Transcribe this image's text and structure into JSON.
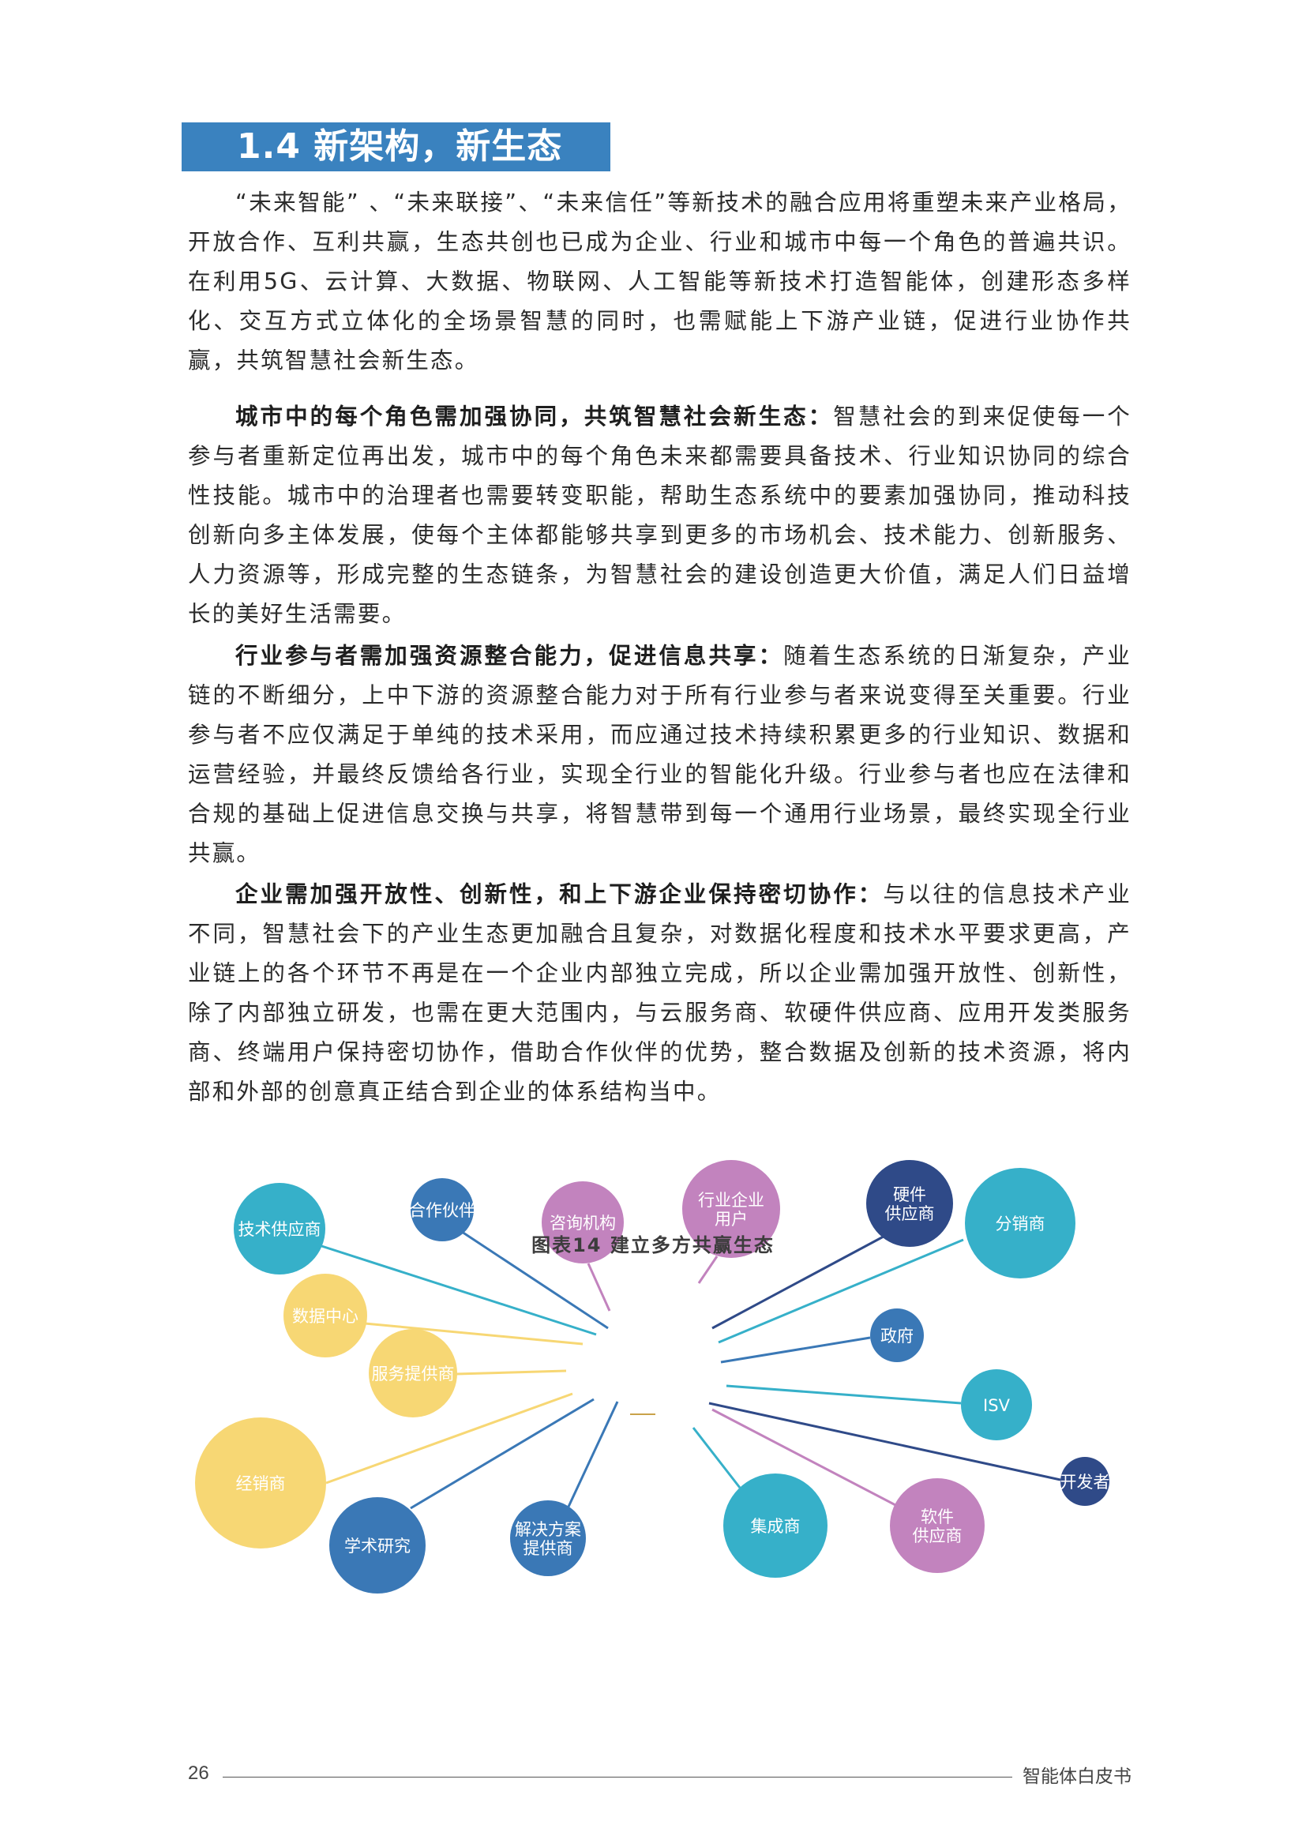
{
  "section": {
    "title": "1.4 新架构，新生态"
  },
  "paragraphs": {
    "p1": {
      "text": "“未来智能”  、“未来联接”、“未来信任”等新技术的融合应用将重塑未来产业格局，开放合作、互利共赢，生态共创也已成为企业、行业和城市中每一个角色的普遍共识。在利用5G、云计算、大数据、物联网、人工智能等新技术打造智能体，创建形态多样化、交互方式立体化的全场景智慧的同时，也需赋能上下游产业链，促进行业协作共赢，共筑智慧社会新生态。"
    },
    "p2": {
      "lead": "城市中的每个角色需加强协同，共筑智慧社会新生态：",
      "text": "智慧社会的到来促使每一个参与者重新定位再出发，城市中的每个角色未来都需要具备技术、行业知识协同的综合性技能。城市中的治理者也需要转变职能，帮助生态系统中的要素加强协同，推动科技创新向多主体发展，使每个主体都能够共享到更多的市场机会、技术能力、创新服务、人力资源等，形成完整的生态链条，为智慧社会的建设创造更大价值，满足人们日益增长的美好生活需要。"
    },
    "p3": {
      "lead": "行业参与者需加强资源整合能力，促进信息共享：",
      "text": "随着生态系统的日渐复杂，产业链的不断细分，上中下游的资源整合能力对于所有行业参与者来说变得至关重要。行业参与者不应仅满足于单纯的技术采用，而应通过技术持续积累更多的行业知识、数据和运营经验，并最终反馈给各行业，实现全行业的智能化升级。行业参与者也应在法律和合规的基础上促进信息交换与共享，将智慧带到每一个通用行业场景，最终实现全行业共赢。"
    },
    "p4": {
      "lead": "企业需加强开放性、创新性，和上下游企业保持密切协作：",
      "text": "与以往的信息技术产业不同，智慧社会下的产业生态更加融合且复杂，对数据化程度和技术水平要求更高，产业链上的各个环节不再是在一个企业内部独立完成，所以企业需加强开放性、创新性，除了内部独立研发，也需在更大范围内，与云服务商、软硬件供应商、应用开发类服务商、终端用户保持密切协作，借助合作伙伴的优势，整合数据及创新的技术资源，将内部和外部的创意真正结合到企业的体系结构当中。"
    }
  },
  "diagram": {
    "colors": {
      "cyan": "#36b0c9",
      "blue": "#3a78b6",
      "purple": "#c283be",
      "navy": "#2f4a88",
      "yellow": "#f7d774"
    },
    "nodes": [
      {
        "id": "tech_supplier",
        "lines": [
          "技术供应商"
        ],
        "color": "cyan"
      },
      {
        "id": "partner",
        "lines": [
          "合作伙伴"
        ],
        "color": "blue"
      },
      {
        "id": "consulting",
        "lines": [
          "咨询机构"
        ],
        "color": "purple"
      },
      {
        "id": "industry_user",
        "lines": [
          "行业企业",
          "用户"
        ],
        "color": "purple"
      },
      {
        "id": "hardware_supplier",
        "lines": [
          "硬件",
          "供应商"
        ],
        "color": "navy"
      },
      {
        "id": "distributor",
        "lines": [
          "分销商"
        ],
        "color": "cyan"
      },
      {
        "id": "data_center",
        "lines": [
          "数据中心"
        ],
        "color": "yellow"
      },
      {
        "id": "government",
        "lines": [
          "政府"
        ],
        "color": "blue"
      },
      {
        "id": "service_provider",
        "lines": [
          "服务提供商"
        ],
        "color": "yellow"
      },
      {
        "id": "isv",
        "lines": [
          "ISV"
        ],
        "color": "cyan"
      },
      {
        "id": "dealer",
        "lines": [
          "经销商"
        ],
        "color": "yellow"
      },
      {
        "id": "developer",
        "lines": [
          "开发者"
        ],
        "color": "navy"
      },
      {
        "id": "academic",
        "lines": [
          "学术研究"
        ],
        "color": "blue"
      },
      {
        "id": "solution_provider",
        "lines": [
          "解决方案",
          "提供商"
        ],
        "color": "blue"
      },
      {
        "id": "integrator",
        "lines": [
          "集成商"
        ],
        "color": "cyan"
      },
      {
        "id": "software_supplier",
        "lines": [
          "软件",
          "供应商"
        ],
        "color": "purple"
      }
    ]
  },
  "caption": {
    "text": "图表14  建立多方共赢生态"
  },
  "footer": {
    "page_number": "26",
    "book_title": "智能体白皮书"
  }
}
